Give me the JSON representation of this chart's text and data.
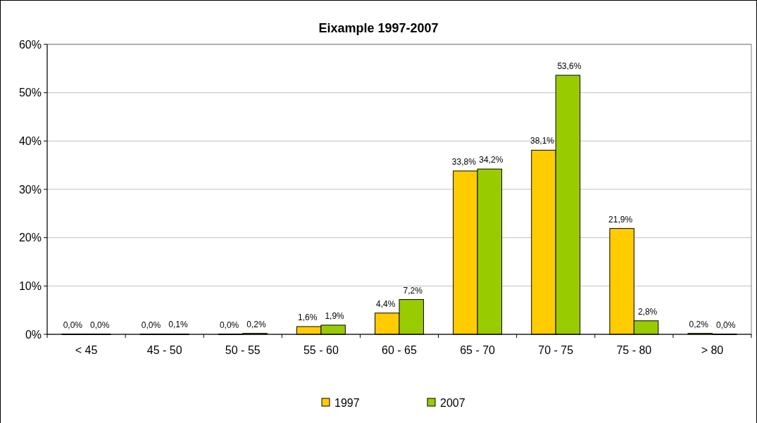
{
  "chart_data": {
    "type": "bar",
    "title": "Eixample 1997-2007",
    "categories": [
      "< 45",
      "45 - 50",
      "50 - 55",
      "55 - 60",
      "60 - 65",
      "65 - 70",
      "70 - 75",
      "75 - 80",
      "> 80"
    ],
    "series": [
      {
        "name": "1997",
        "color": "#ffcc00",
        "values": [
          0.0,
          0.0,
          0.0,
          1.6,
          4.4,
          33.8,
          38.1,
          21.9,
          0.2
        ],
        "value_labels": [
          "0,0%",
          "0,0%",
          "0,0%",
          "1,6%",
          "4,4%",
          "33,8%",
          "38,1%",
          "21,9%",
          "0,2%"
        ]
      },
      {
        "name": "2007",
        "color": "#99cc00",
        "values": [
          0.0,
          0.1,
          0.2,
          1.9,
          7.2,
          34.2,
          53.6,
          2.8,
          0.0
        ],
        "value_labels": [
          "0,0%",
          "0,1%",
          "0,2%",
          "1,9%",
          "7,2%",
          "34,2%",
          "53,6%",
          "2,8%",
          "0,0%"
        ]
      }
    ],
    "ylim": [
      0,
      60
    ],
    "yticks": [
      {
        "value": 0,
        "label": "0%"
      },
      {
        "value": 10,
        "label": "10%"
      },
      {
        "value": 20,
        "label": "20%"
      },
      {
        "value": 30,
        "label": "30%"
      },
      {
        "value": 40,
        "label": "40%"
      },
      {
        "value": 50,
        "label": "50%"
      },
      {
        "value": 60,
        "label": "60%"
      }
    ],
    "grid": "y",
    "legend": "bottom"
  }
}
